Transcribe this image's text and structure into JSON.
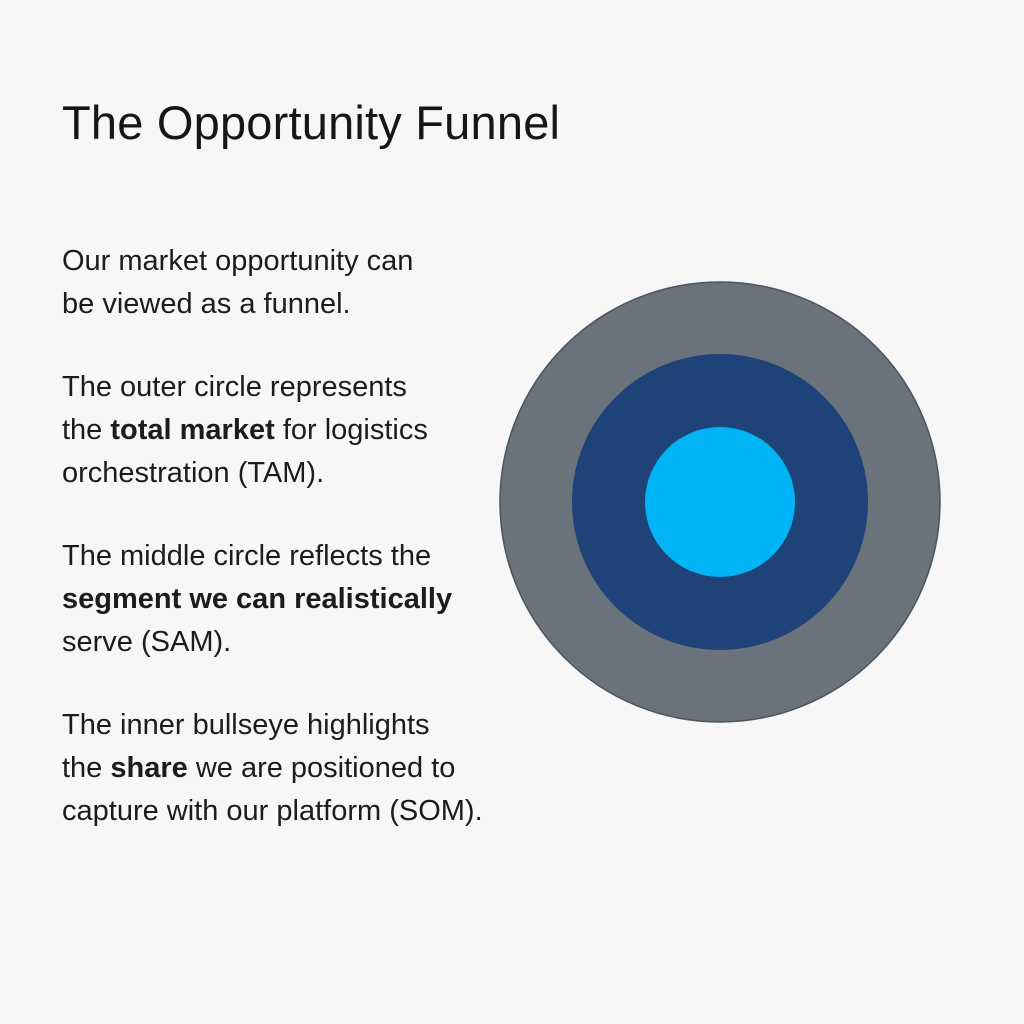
{
  "title": "The Opportunity Funnel",
  "paragraphs": [
    {
      "line1": "Our market opportunity can",
      "line2": "be viewed as a funnel."
    },
    {
      "line1": "The outer circle represents",
      "line2_pre": "the ",
      "line2_bold": "total market",
      "line2_post": " for logistics",
      "line3": "orchestration (TAM)."
    },
    {
      "line1": "The middle circle reflects the",
      "line2_bold": "segment we can realistically",
      "line3": "serve (SAM)."
    },
    {
      "line1": "The inner bullseye highlights",
      "line2_pre": "the ",
      "line2_bold": "share",
      "line2_post": " we are positioned to",
      "line3": "capture with our platform (SOM)."
    }
  ],
  "circles": {
    "outer_color": "#6a727b",
    "middle_color": "#1f4279",
    "inner_color": "#00b4f5",
    "stroke_color": "#4d545c"
  }
}
